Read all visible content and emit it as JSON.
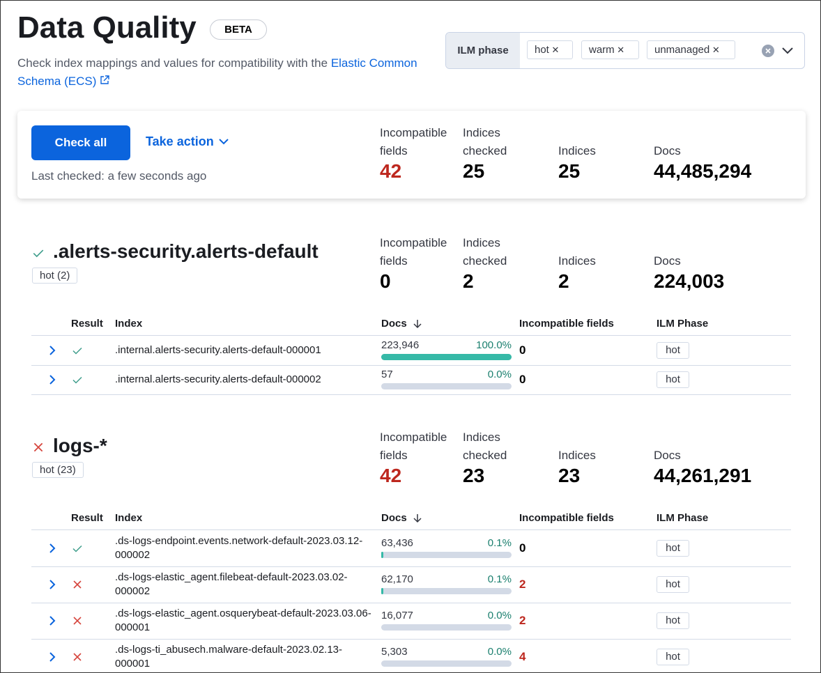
{
  "header": {
    "title": "Data Quality",
    "badge": "BETA",
    "description": "Check index mappings and values for compatibility with the",
    "link": "Elastic Common Schema (ECS)"
  },
  "ilm_filter": {
    "label": "ILM phase",
    "options": [
      "hot",
      "warm",
      "unmanaged"
    ]
  },
  "summary": {
    "check_all": "Check all",
    "take_action": "Take action",
    "last_checked": "Last checked: a few seconds ago",
    "stats": [
      {
        "label": "Incompatible fields",
        "value": "42",
        "color": "#bd271e"
      },
      {
        "label": "Indices checked",
        "value": "25",
        "color": "#000000"
      },
      {
        "label": "Indices",
        "value": "25",
        "color": "#000000"
      },
      {
        "label": "Docs",
        "value": "44,485,294",
        "color": "#000000"
      }
    ]
  },
  "patterns": [
    {
      "name": ".alerts-security.alerts-default",
      "status": "pass",
      "badge": "hot (2)",
      "stats": [
        {
          "label": "Incompatible fields",
          "value": "0",
          "color": "#000000"
        },
        {
          "label": "Indices checked",
          "value": "2",
          "color": "#000000"
        },
        {
          "label": "Indices",
          "value": "2",
          "color": "#000000"
        },
        {
          "label": "Docs",
          "value": "224,003",
          "color": "#000000"
        }
      ],
      "columns": [
        "Result",
        "Index",
        "Docs",
        "Incompatible fields",
        "ILM Phase"
      ],
      "rows": [
        {
          "status": "pass",
          "index": ".internal.alerts-security.alerts-default-000001",
          "docs": "223,946",
          "percent": 100.0,
          "percent_label": "100.0%",
          "incompatible": "0",
          "ilm": "hot"
        },
        {
          "status": "pass",
          "index": ".internal.alerts-security.alerts-default-000002",
          "docs": "57",
          "percent": 0.0,
          "percent_label": "0.0%",
          "incompatible": "0",
          "ilm": "hot"
        }
      ]
    },
    {
      "name": "logs-*",
      "status": "fail",
      "badge": "hot (23)",
      "stats": [
        {
          "label": "Incompatible fields",
          "value": "42",
          "color": "#bd271e"
        },
        {
          "label": "Indices checked",
          "value": "23",
          "color": "#000000"
        },
        {
          "label": "Indices",
          "value": "23",
          "color": "#000000"
        },
        {
          "label": "Docs",
          "value": "44,261,291",
          "color": "#000000"
        }
      ],
      "columns": [
        "Result",
        "Index",
        "Docs",
        "Incompatible fields",
        "ILM Phase"
      ],
      "rows": [
        {
          "status": "pass",
          "index": ".ds-logs-endpoint.events.network-default-2023.03.12-000002",
          "docs": "63,436",
          "percent": 0.1,
          "percent_label": "0.1%",
          "incompatible": "0",
          "ilm": "hot"
        },
        {
          "status": "fail",
          "index": ".ds-logs-elastic_agent.filebeat-default-2023.03.02-000002",
          "docs": "62,170",
          "percent": 0.1,
          "percent_label": "0.1%",
          "incompatible": "2",
          "ilm": "hot"
        },
        {
          "status": "fail",
          "index": ".ds-logs-elastic_agent.osquerybeat-default-2023.03.06-000001",
          "docs": "16,077",
          "percent": 0.0,
          "percent_label": "0.0%",
          "incompatible": "2",
          "ilm": "hot"
        },
        {
          "status": "fail",
          "index": ".ds-logs-ti_abusech.malware-default-2023.02.13-000001",
          "docs": "5,303",
          "percent": 0.0,
          "percent_label": "0.0%",
          "incompatible": "4",
          "ilm": "hot"
        }
      ]
    }
  ]
}
